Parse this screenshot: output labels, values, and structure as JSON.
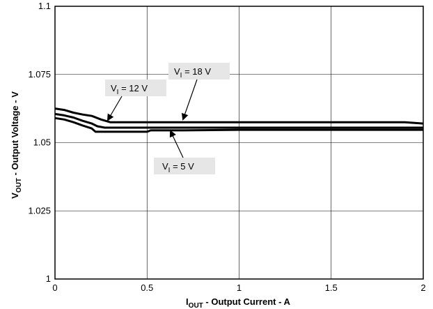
{
  "chart_data": {
    "type": "line",
    "xlabel": {
      "main": "I",
      "sub": "OUT",
      "rest": " - Output Current - A"
    },
    "ylabel": {
      "main": "V",
      "sub": "OUT",
      "rest": " - Output Voltage - V"
    },
    "xlim": [
      0,
      2
    ],
    "ylim": [
      1,
      1.1
    ],
    "xticks": [
      "0",
      "0.5",
      "1",
      "1.5",
      "2"
    ],
    "yticks": [
      "1",
      "1.025",
      "1.05",
      "1.075",
      "1.1"
    ],
    "grid": true,
    "series": [
      {
        "name": "V_I = 18 V",
        "x": [
          0,
          0.05,
          0.1,
          0.15,
          0.2,
          0.25,
          0.3,
          0.5,
          1.0,
          1.5,
          1.9,
          2.0
        ],
        "y": [
          1.0625,
          1.062,
          1.061,
          1.0603,
          1.0598,
          1.0585,
          1.0575,
          1.0575,
          1.0575,
          1.0575,
          1.0575,
          1.057
        ]
      },
      {
        "name": "V_I = 12 V",
        "x": [
          0,
          0.05,
          0.1,
          0.15,
          0.2,
          0.23,
          0.27,
          0.3,
          0.5,
          1.0,
          1.5,
          2.0
        ],
        "y": [
          1.0605,
          1.06,
          1.0592,
          1.058,
          1.057,
          1.056,
          1.0555,
          1.0555,
          1.0555,
          1.0555,
          1.0555,
          1.0555
        ]
      },
      {
        "name": "V_I = 5 V",
        "x": [
          0,
          0.05,
          0.1,
          0.15,
          0.2,
          0.22,
          0.3,
          0.5,
          0.52,
          0.7,
          1.0,
          1.5,
          2.0
        ],
        "y": [
          1.059,
          1.0585,
          1.0575,
          1.0563,
          1.0552,
          1.054,
          1.054,
          1.054,
          1.0545,
          1.0545,
          1.0547,
          1.0547,
          1.0547
        ]
      }
    ],
    "annotations": [
      {
        "main": "V",
        "sub": "I",
        "rest": " = 18 V",
        "series": "V_I = 18 V"
      },
      {
        "main": "V",
        "sub": "I",
        "rest": " = 12 V",
        "series": "V_I = 12 V"
      },
      {
        "main": "V",
        "sub": "I",
        "rest": " = 5 V",
        "series": "V_I = 5 V"
      }
    ]
  }
}
